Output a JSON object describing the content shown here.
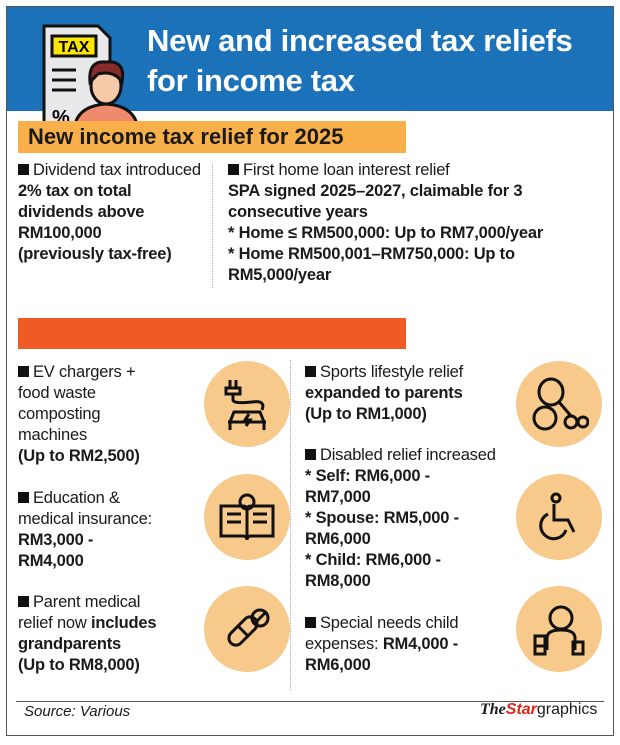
{
  "header": {
    "title_line1": "New and increased tax reliefs",
    "title_line2": "for income tax",
    "icon": "tax-document-person-icon",
    "icon_text": "TAX"
  },
  "section1": {
    "label": "New income tax relief for 2025",
    "left": {
      "heading": "Dividend tax introduced",
      "line1": "2% tax on total",
      "line2": "dividends above",
      "line3": "RM100,000",
      "line4": "(previously tax-free)"
    },
    "right": {
      "heading": "First home loan interest relief",
      "line1": "SPA signed 2025–2027, claimable for 3",
      "line2": "consecutive years",
      "line3": "* Home ≤ RM500,000: Up to RM7,000/year",
      "line4": "* Home RM500,001–RM750,000: Up to",
      "line5": "RM5,000/year"
    }
  },
  "section2": {
    "label": "",
    "items": [
      {
        "l1": "EV chargers +",
        "l2": "food waste",
        "l3": "composting",
        "l4": "machines",
        "bold": "(Up to RM2,500)",
        "icon": "ev-charger-car-icon"
      },
      {
        "l1": "Education &",
        "l2": "medical insurance:",
        "b1": "RM3,000 -",
        "b2": "RM4,000",
        "icon": "open-book-lightbulb-icon"
      },
      {
        "l1": "Parent medical",
        "l2": "relief now",
        "b_inline": "includes",
        "b1": "grandparents",
        "b2": "(Up to RM8,000)",
        "icon": "pills-icon"
      },
      {
        "l1": "Sports lifestyle relief",
        "b1": "expanded to parents",
        "b2": "(Up to RM1,000)",
        "icon": "sports-equipment-icon"
      },
      {
        "l1": "Disabled relief increased",
        "b1": "* Self: RM6,000 -",
        "b2": "RM7,000",
        "b3": "* Spouse: RM5,000 -",
        "b4": "RM6,000",
        "b5": "* Child: RM6,000 -",
        "b6": "RM8,000",
        "icon": "wheelchair-icon"
      },
      {
        "l1": "Special needs child",
        "l2": "expenses:",
        "b_inline": "RM4,000 -",
        "b1": "RM6,000",
        "icon": "child-toys-icon"
      }
    ]
  },
  "footer": {
    "source": "Source: Various",
    "logo_the": "The",
    "logo_star": "Star",
    "logo_graphics": "graphics"
  },
  "colors": {
    "header": "#1b72b9",
    "label": "#f9b04a",
    "red_bar": "#f05a24",
    "circle": "#f7c98a"
  }
}
